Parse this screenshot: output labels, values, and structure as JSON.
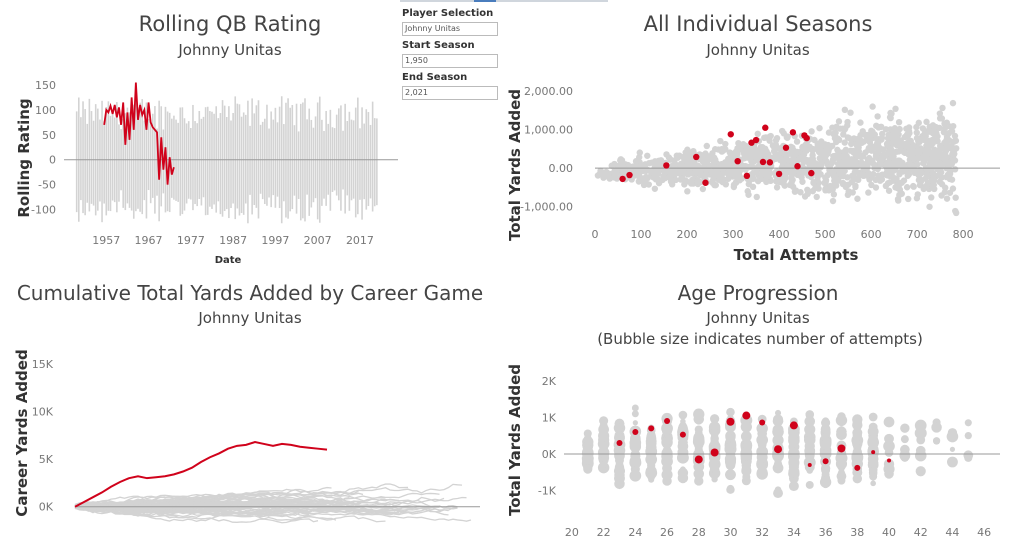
{
  "controls": {
    "player_label": "Player Selection",
    "player_value": "Johnny Unitas",
    "start_label": "Start Season",
    "start_value": "1,950",
    "end_label": "End Season",
    "end_value": "2,021"
  },
  "colors": {
    "highlight": "#d0021b",
    "background_series": "#d3d3d3",
    "zero_line": "#999999"
  },
  "chart_data": [
    {
      "type": "line",
      "title": "Rolling QB Rating",
      "subtitle": "Johnny Unitas",
      "xlabel": "Date",
      "ylabel": "Rolling Rating",
      "xlim": [
        1947,
        2026
      ],
      "ylim": [
        -125,
        160
      ],
      "x_ticks": [
        "1957",
        "1967",
        "1977",
        "1987",
        "1997",
        "2007",
        "2017"
      ],
      "y_ticks": [
        "150",
        "100",
        "50",
        "0",
        "-50",
        "-100"
      ],
      "background_range": [
        1950,
        2021
      ],
      "series": [
        {
          "points": [
            [
              1956.5,
              70
            ],
            [
              1957,
              100
            ],
            [
              1957.5,
              95
            ],
            [
              1958,
              108
            ],
            [
              1958.5,
              92
            ],
            [
              1959,
              110
            ],
            [
              1959.5,
              85
            ],
            [
              1960,
              105
            ],
            [
              1960.5,
              70
            ],
            [
              1961,
              115
            ],
            [
              1961.5,
              30
            ],
            [
              1962,
              95
            ],
            [
              1962.5,
              40
            ],
            [
              1963,
              125
            ],
            [
              1963.5,
              60
            ],
            [
              1964,
              155
            ],
            [
              1964.5,
              80
            ],
            [
              1965,
              110
            ],
            [
              1965.5,
              90
            ],
            [
              1966,
              100
            ],
            [
              1966.5,
              60
            ],
            [
              1967,
              115
            ],
            [
              1967.5,
              75
            ],
            [
              1968,
              65
            ],
            [
              1969,
              55
            ],
            [
              1969.5,
              -40
            ],
            [
              1970,
              45
            ],
            [
              1970.5,
              -20
            ],
            [
              1971,
              25
            ],
            [
              1971.5,
              -50
            ],
            [
              1972,
              5
            ],
            [
              1972.5,
              -30
            ],
            [
              1973,
              -15
            ]
          ]
        }
      ]
    },
    {
      "type": "scatter",
      "title": "All Individual Seasons",
      "subtitle": "Johnny Unitas",
      "xlabel": "Total Attempts",
      "ylabel": "Total Yards Added",
      "xlim": [
        0,
        880
      ],
      "ylim": [
        -1400,
        2550
      ],
      "x_ticks": [
        "0",
        "100",
        "200",
        "300",
        "400",
        "500",
        "600",
        "700",
        "800"
      ],
      "y_ticks": [
        "2,000.00",
        "1,000.00",
        "0.00",
        "-1,000.00"
      ],
      "highlight": [
        [
          60,
          -280
        ],
        [
          75,
          -180
        ],
        [
          155,
          70
        ],
        [
          220,
          290
        ],
        [
          240,
          -380
        ],
        [
          295,
          880
        ],
        [
          310,
          180
        ],
        [
          330,
          -200
        ],
        [
          340,
          660
        ],
        [
          350,
          730
        ],
        [
          365,
          160
        ],
        [
          370,
          1050
        ],
        [
          380,
          150
        ],
        [
          400,
          -150
        ],
        [
          415,
          530
        ],
        [
          430,
          930
        ],
        [
          440,
          50
        ],
        [
          455,
          850
        ],
        [
          460,
          780
        ],
        [
          470,
          -130
        ]
      ]
    },
    {
      "type": "line",
      "title": "Cumulative Total Yards Added by Career Game",
      "subtitle": "Johnny Unitas",
      "ylabel": "Career Yards Added",
      "ylim": [
        -3500,
        17000
      ],
      "y_ticks": [
        "15K",
        "10K",
        "5K",
        "0K"
      ],
      "series": [
        {
          "points": [
            [
              0,
              0
            ],
            [
              5,
              500
            ],
            [
              10,
              1000
            ],
            [
              15,
              1500
            ],
            [
              20,
              2100
            ],
            [
              25,
              2600
            ],
            [
              30,
              3000
            ],
            [
              35,
              3200
            ],
            [
              40,
              3000
            ],
            [
              45,
              3100
            ],
            [
              50,
              3200
            ],
            [
              55,
              3400
            ],
            [
              60,
              3700
            ],
            [
              65,
              4100
            ],
            [
              70,
              4700
            ],
            [
              75,
              5200
            ],
            [
              80,
              5600
            ],
            [
              85,
              6100
            ],
            [
              90,
              6400
            ],
            [
              95,
              6500
            ],
            [
              100,
              6800
            ],
            [
              105,
              6600
            ],
            [
              110,
              6400
            ],
            [
              115,
              6600
            ],
            [
              120,
              6500
            ],
            [
              125,
              6300
            ],
            [
              130,
              6200
            ],
            [
              135,
              6100
            ],
            [
              140,
              6000
            ]
          ]
        }
      ]
    },
    {
      "type": "scatter",
      "title": "Age Progression",
      "subtitle": "Johnny Unitas",
      "subtitle2": "(Bubble size indicates number of attempts)",
      "ylabel": "Total Yards Added",
      "xlim": [
        19.5,
        47
      ],
      "ylim": [
        -1750,
        2650
      ],
      "x_ticks": [
        "20",
        "22",
        "24",
        "26",
        "28",
        "30",
        "32",
        "34",
        "36",
        "38",
        "40",
        "42",
        "44",
        "46"
      ],
      "y_ticks": [
        "2K",
        "1K",
        "0K",
        "-1K"
      ],
      "highlight": [
        [
          23,
          300,
          3
        ],
        [
          24,
          600,
          3
        ],
        [
          25,
          700,
          3
        ],
        [
          26,
          900,
          3
        ],
        [
          27,
          530,
          3
        ],
        [
          28,
          -150,
          4
        ],
        [
          29,
          40,
          4
        ],
        [
          30,
          880,
          4
        ],
        [
          31,
          1050,
          4
        ],
        [
          32,
          860,
          3
        ],
        [
          33,
          130,
          4
        ],
        [
          34,
          780,
          4
        ],
        [
          35,
          -300,
          2
        ],
        [
          36,
          -200,
          3
        ],
        [
          37,
          150,
          4
        ],
        [
          38,
          -380,
          3
        ],
        [
          39,
          50,
          2
        ],
        [
          40,
          -180,
          2
        ]
      ]
    }
  ]
}
